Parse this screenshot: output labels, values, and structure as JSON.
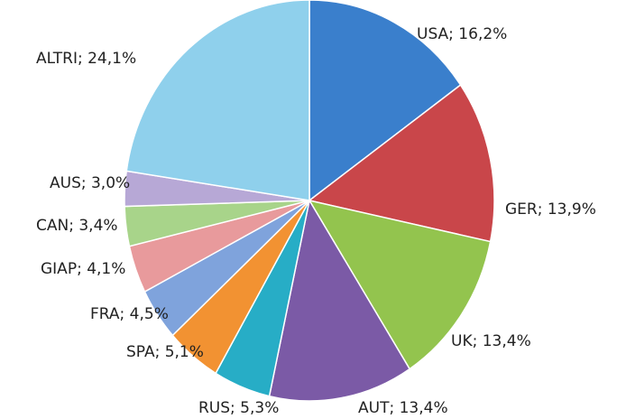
{
  "chart_data": {
    "type": "pie",
    "values": [
      16.2,
      13.9,
      13.4,
      13.4,
      5.3,
      5.1,
      4.5,
      4.1,
      3.4,
      3.0,
      24.1
    ],
    "value_labels": [
      "USA; 16,2%",
      "GER; 13,9%",
      "UK; 13,4%",
      "AUT; 13,4%",
      "RUS; 5,3%",
      "SPA; 5,1%",
      "FRA; 4,5%",
      "GIAP; 4,1%",
      "CAN; 3,4%",
      "AUS; 3,0%",
      "ALTRI; 24,1%"
    ],
    "colors": [
      "#3a7fcc",
      "#c9464a",
      "#93c44e",
      "#7b5aa6",
      "#27adc6",
      "#f29232",
      "#7fa3dc",
      "#e89a9c",
      "#a8d48a",
      "#b7a8d6",
      "#8fd0ec"
    ]
  }
}
